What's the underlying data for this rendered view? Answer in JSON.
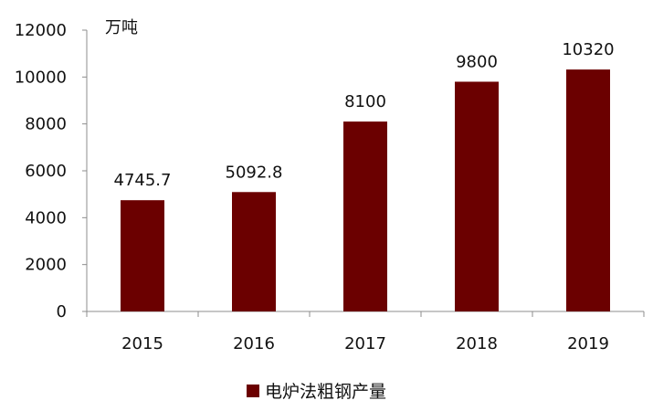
{
  "chart_data": {
    "type": "bar",
    "categories": [
      "2015",
      "2016",
      "2017",
      "2018",
      "2019"
    ],
    "series": [
      {
        "name": "电炉法粗钢产量",
        "values": [
          4745.7,
          5092.8,
          8100,
          9800,
          10320
        ]
      }
    ],
    "data_labels": [
      "4745.7",
      "5092.8",
      "8100",
      "9800",
      "10320"
    ],
    "unit_label": "万吨",
    "ylim": [
      0,
      12000
    ],
    "yticks": [
      0,
      2000,
      4000,
      6000,
      8000,
      10000,
      12000
    ],
    "grid": false,
    "legend_position": "bottom",
    "bar_color": "#6b0000"
  }
}
